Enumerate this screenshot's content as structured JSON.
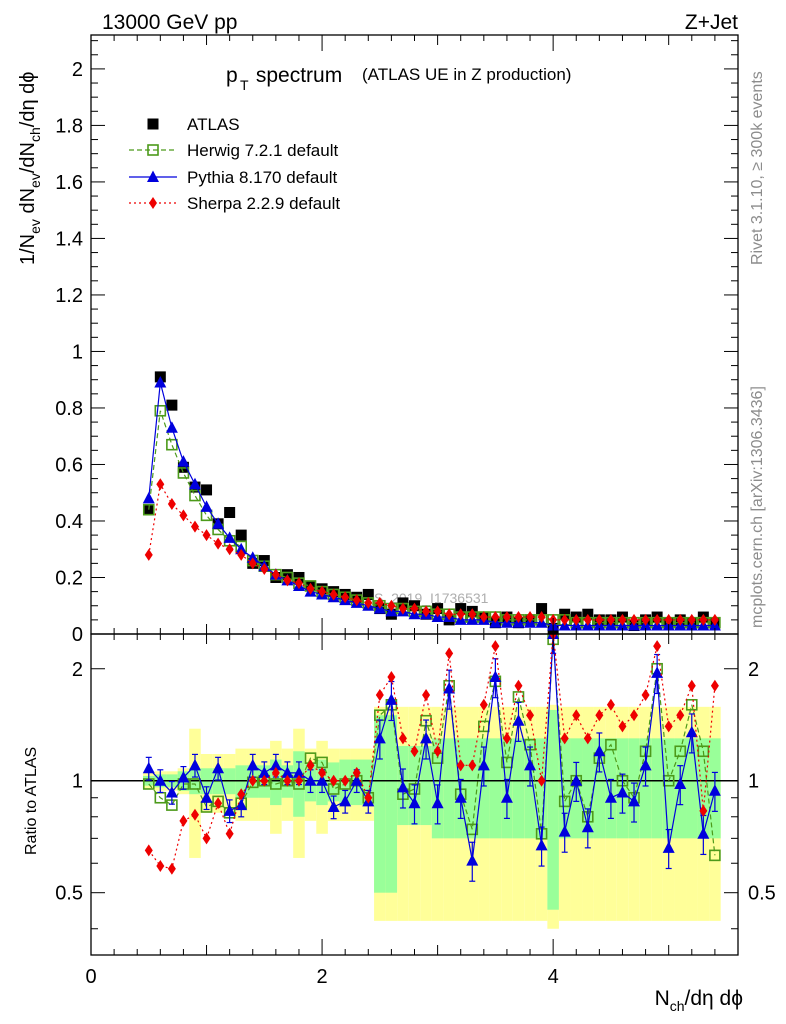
{
  "header": {
    "energy_label": "13000 GeV pp",
    "process_label": "Z+Jet"
  },
  "side_text": {
    "rivet": "Rivet 3.1.10, ≥ 300k events",
    "mcplots": "mcplots.cern.ch [arXiv:1306.3436]"
  },
  "watermark": "ATLAS_2019_I1736531",
  "colors": {
    "atlas": "#000000",
    "herwig": "#4c9a1a",
    "pythia": "#0000dd",
    "sherpa": "#ee0000",
    "band_yellow": "#ffff99",
    "band_green": "#99ff99"
  },
  "chart_data": [
    {
      "type": "scatter",
      "title_main": "p",
      "title_sub": "T",
      "title_word": " spectrum",
      "title_note": "(ATLAS UE in Z production)",
      "ylabel": "1/N",
      "ylabel_parts": [
        "1/N",
        "ev",
        " dN",
        "ev",
        "/dN",
        "ch",
        "/dη dϕ"
      ],
      "xlim": [
        0,
        5.6
      ],
      "ylim": [
        0,
        2.12
      ],
      "yticks": [
        0,
        0.2,
        0.4,
        0.6,
        0.8,
        1,
        1.2,
        1.4,
        1.6,
        1.8,
        2
      ],
      "ytick_labels": [
        "0",
        "0.2",
        "0.4",
        "0.6",
        "0.8",
        "1",
        "1.2",
        "1.4",
        "1.6",
        "1.8",
        "2"
      ],
      "legend": [
        "ATLAS",
        "Herwig 7.2.1 default",
        "Pythia 8.170 default",
        "Sherpa 2.2.9 default"
      ],
      "x": [
        0.5,
        0.6,
        0.7,
        0.8,
        0.9,
        1.0,
        1.1,
        1.2,
        1.3,
        1.4,
        1.5,
        1.6,
        1.7,
        1.8,
        1.9,
        2.0,
        2.1,
        2.2,
        2.3,
        2.4,
        2.5,
        2.6,
        2.7,
        2.8,
        2.9,
        3.0,
        3.1,
        3.2,
        3.3,
        3.4,
        3.5,
        3.6,
        3.7,
        3.8,
        3.9,
        4.0,
        4.1,
        4.2,
        4.3,
        4.4,
        4.5,
        4.6,
        4.7,
        4.8,
        4.9,
        5.0,
        5.1,
        5.2,
        5.3,
        5.4
      ],
      "series": [
        {
          "name": "ATLAS",
          "values": [
            0.44,
            0.91,
            0.81,
            0.59,
            0.52,
            0.51,
            0.39,
            0.43,
            0.35,
            0.25,
            0.26,
            0.2,
            0.21,
            0.2,
            0.17,
            0.16,
            0.15,
            0.14,
            0.13,
            0.14,
            0.09,
            0.07,
            0.11,
            0.1,
            0.07,
            0.09,
            0.05,
            0.09,
            0.08,
            0.06,
            0.04,
            0.06,
            0.04,
            0.05,
            0.09,
            0.02,
            0.07,
            0.06,
            0.07,
            0.05,
            0.05,
            0.06,
            0.03,
            0.05,
            0.06,
            0.04,
            0.05,
            0.04,
            0.06,
            0.04
          ]
        },
        {
          "name": "Herwig 7.2.1 default",
          "values": [
            0.44,
            0.79,
            0.67,
            0.57,
            0.49,
            0.42,
            0.37,
            0.33,
            0.31,
            0.26,
            0.24,
            0.21,
            0.2,
            0.18,
            0.17,
            0.15,
            0.14,
            0.13,
            0.12,
            0.11,
            0.1,
            0.09,
            0.09,
            0.08,
            0.08,
            0.07,
            0.07,
            0.06,
            0.06,
            0.06,
            0.06,
            0.05,
            0.05,
            0.05,
            0.05,
            0.05,
            0.05,
            0.04,
            0.04,
            0.04,
            0.04,
            0.04,
            0.04,
            0.04,
            0.04,
            0.04,
            0.04,
            0.04,
            0.04,
            0.04
          ]
        },
        {
          "name": "Pythia 8.170 default",
          "values": [
            0.48,
            0.89,
            0.73,
            0.61,
            0.53,
            0.45,
            0.39,
            0.34,
            0.3,
            0.27,
            0.24,
            0.21,
            0.19,
            0.17,
            0.15,
            0.14,
            0.13,
            0.12,
            0.11,
            0.1,
            0.09,
            0.08,
            0.08,
            0.07,
            0.07,
            0.06,
            0.06,
            0.05,
            0.05,
            0.05,
            0.04,
            0.04,
            0.04,
            0.04,
            0.04,
            0.03,
            0.03,
            0.03,
            0.03,
            0.03,
            0.03,
            0.03,
            0.03,
            0.03,
            0.03,
            0.03,
            0.03,
            0.03,
            0.03,
            0.03
          ]
        },
        {
          "name": "Sherpa 2.2.9 default",
          "values": [
            0.28,
            0.53,
            0.46,
            0.42,
            0.38,
            0.35,
            0.32,
            0.3,
            0.28,
            0.25,
            0.23,
            0.21,
            0.19,
            0.18,
            0.16,
            0.15,
            0.14,
            0.13,
            0.12,
            0.11,
            0.11,
            0.1,
            0.09,
            0.09,
            0.08,
            0.08,
            0.07,
            0.07,
            0.07,
            0.06,
            0.06,
            0.06,
            0.06,
            0.06,
            0.06,
            0.05,
            0.05,
            0.05,
            0.05,
            0.05,
            0.05,
            0.05,
            0.05,
            0.05,
            0.05,
            0.05,
            0.05,
            0.05,
            0.05,
            0.05
          ]
        }
      ]
    },
    {
      "type": "scatter",
      "ylabel": "Ratio to ATLAS",
      "xlabel_parts": [
        "N",
        "ch",
        "/dη dϕ"
      ],
      "xlim": [
        0,
        5.6
      ],
      "ylim": [
        0.34,
        2.48
      ],
      "yscale": "log",
      "yticks": [
        0.5,
        1,
        2
      ],
      "ytick_labels": [
        "0.5",
        "1",
        "2"
      ],
      "xticks": [
        0,
        2,
        4
      ],
      "xtick_labels": [
        "0",
        "2",
        "4"
      ],
      "x": [
        0.5,
        0.6,
        0.7,
        0.8,
        0.9,
        1.0,
        1.1,
        1.2,
        1.3,
        1.4,
        1.5,
        1.6,
        1.7,
        1.8,
        1.9,
        2.0,
        2.1,
        2.2,
        2.3,
        2.4,
        2.5,
        2.6,
        2.7,
        2.8,
        2.9,
        3.0,
        3.1,
        3.2,
        3.3,
        3.4,
        3.5,
        3.6,
        3.7,
        3.8,
        3.9,
        4.0,
        4.1,
        4.2,
        4.3,
        4.4,
        4.5,
        4.6,
        4.7,
        4.8,
        4.9,
        5.0,
        5.1,
        5.2,
        5.3,
        5.4
      ],
      "band_yellow": [
        0.05,
        0.06,
        0.06,
        0.08,
        0.38,
        0.18,
        0.18,
        0.18,
        0.22,
        0.22,
        0.22,
        0.28,
        0.22,
        0.38,
        0.22,
        0.28,
        0.22,
        0.22,
        0.22,
        0.22,
        0.58,
        0.58,
        0.58,
        0.58,
        0.58,
        0.58,
        0.58,
        0.58,
        0.58,
        0.58,
        0.58,
        0.58,
        0.58,
        0.58,
        0.58,
        0.6,
        0.58,
        0.58,
        0.58,
        0.58,
        0.58,
        0.58,
        0.58,
        0.58,
        0.58,
        0.58,
        0.58,
        0.58,
        0.58,
        0.58
      ],
      "band_green": [
        0.03,
        0.04,
        0.04,
        0.06,
        0.08,
        0.08,
        0.08,
        0.08,
        0.1,
        0.1,
        0.1,
        0.14,
        0.1,
        0.2,
        0.12,
        0.14,
        0.12,
        0.14,
        0.14,
        0.14,
        0.5,
        0.5,
        0.24,
        0.24,
        0.24,
        0.3,
        0.3,
        0.3,
        0.3,
        0.3,
        0.3,
        0.3,
        0.3,
        0.3,
        0.3,
        0.55,
        0.3,
        0.3,
        0.3,
        0.3,
        0.3,
        0.3,
        0.3,
        0.3,
        0.3,
        0.3,
        0.3,
        0.3,
        0.3,
        0.3
      ],
      "series": [
        {
          "name": "Herwig 7.2.1 default",
          "values": [
            0.98,
            0.9,
            0.86,
            0.98,
            0.98,
            0.85,
            0.88,
            0.82,
            0.87,
            0.99,
            1.0,
            0.98,
            1.0,
            0.98,
            1.15,
            1.12,
            0.95,
            0.98,
            1.0,
            0.9,
            1.5,
            1.6,
            0.92,
            0.95,
            1.45,
            1.15,
            1.8,
            0.92,
            0.74,
            1.4,
            1.85,
            1.12,
            1.68,
            1.25,
            0.72,
            2.4,
            0.88,
            1.0,
            0.8,
            1.15,
            1.25,
            1.0,
            0.9,
            1.2,
            2.0,
            1.0,
            1.2,
            1.6,
            1.2,
            0.63
          ]
        },
        {
          "name": "Pythia 8.170 default",
          "values": [
            1.08,
            1.0,
            0.93,
            1.02,
            1.1,
            0.9,
            1.08,
            0.83,
            0.86,
            1.1,
            1.05,
            1.1,
            1.05,
            1.05,
            1.0,
            1.0,
            0.85,
            0.88,
            1.0,
            0.88,
            1.3,
            1.65,
            0.96,
            0.87,
            1.3,
            0.87,
            1.77,
            0.9,
            0.61,
            1.1,
            1.9,
            0.9,
            1.45,
            1.1,
            0.67,
            2.5,
            0.73,
            1.0,
            0.75,
            1.2,
            0.9,
            0.93,
            0.88,
            1.1,
            1.95,
            0.66,
            0.98,
            1.35,
            0.72,
            0.94
          ]
        },
        {
          "name": "Sherpa 2.2.9 default",
          "values": [
            0.65,
            0.59,
            0.58,
            0.78,
            0.81,
            0.7,
            0.87,
            0.72,
            0.92,
            1.0,
            1.0,
            1.05,
            1.0,
            1.0,
            1.1,
            1.05,
            1.0,
            1.0,
            1.05,
            0.9,
            1.7,
            1.9,
            1.3,
            1.2,
            1.7,
            1.2,
            2.2,
            1.1,
            1.1,
            1.6,
            2.3,
            1.3,
            1.8,
            1.5,
            1.0,
            2.5,
            1.3,
            1.5,
            1.3,
            1.5,
            1.6,
            1.4,
            1.5,
            1.7,
            2.3,
            1.4,
            1.5,
            1.8,
            0.83,
            1.8
          ]
        }
      ]
    }
  ]
}
